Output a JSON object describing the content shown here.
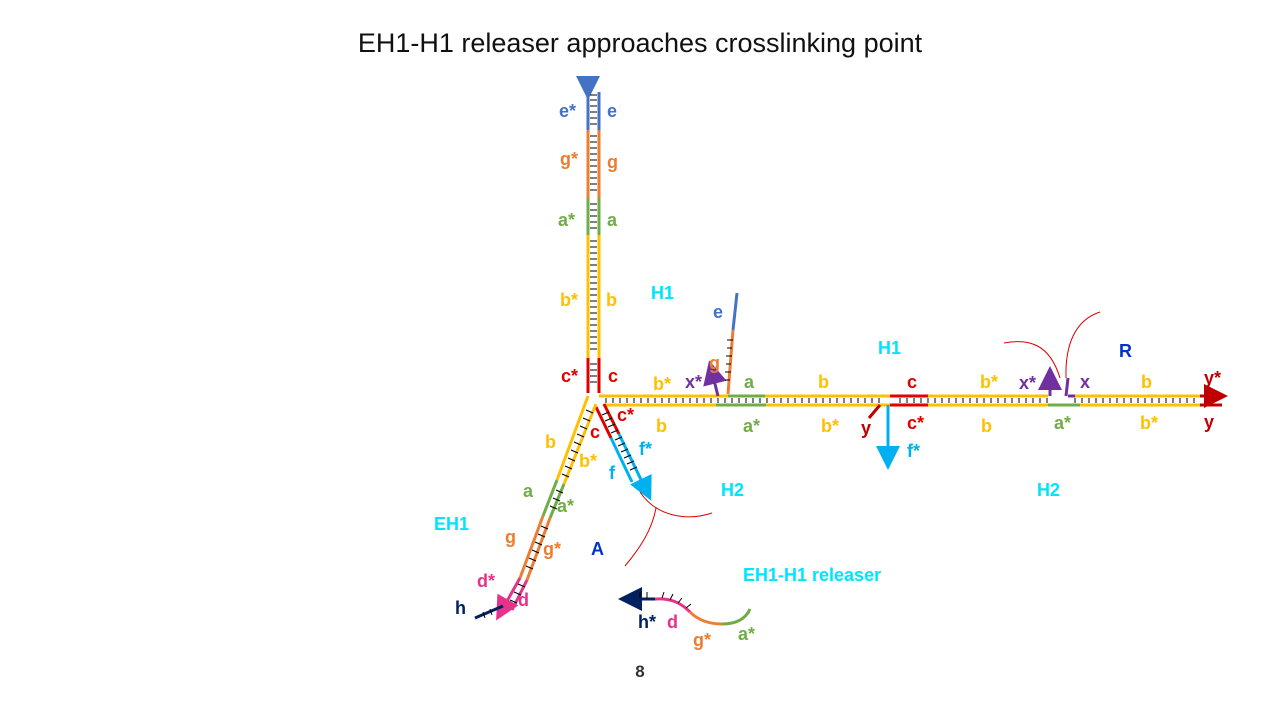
{
  "title": "EH1-H1 releaser approaches crosslinking point",
  "page_number": "8",
  "colors": {
    "blue": "#4472c4",
    "orange": "#ed7d31",
    "green": "#70ad47",
    "yellow": "#ffc000",
    "red": "#e00000",
    "dark_red": "#c00000",
    "purple": "#7030a0",
    "cyan": "#00b0f0",
    "magenta": "#e6338a",
    "navy": "#002060",
    "label_cyan": "#00e5ff",
    "label_blue": "#0033cc"
  },
  "labels": {
    "H1_left": "H1",
    "H1_right": "H1",
    "H2_left": "H2",
    "H2_right": "H2",
    "EH1": "EH1",
    "A": "A",
    "R": "R",
    "releaser": "EH1-H1 releaser"
  },
  "domains": {
    "top_e_star": "e*",
    "top_e": "e",
    "top_g_star": "g*",
    "top_g": "g",
    "top_a_star": "a*",
    "top_a": "a",
    "top_b_star": "b*",
    "top_b": "b",
    "top_c_star": "c*",
    "top_c": "c",
    "h1_b_star": "b*",
    "h1_x_star": "x*",
    "h1_g": "g",
    "h1_e": "e",
    "h1_a": "a",
    "h1_b": "b",
    "h1_a_star": "a*",
    "h1_b_star2": "b*",
    "h1b_b": "b",
    "mid_c": "c",
    "mid_c_star": "c*",
    "mid_y": "y",
    "mid_f_star": "f*",
    "r_b_star": "b*",
    "r_x_star": "x*",
    "r_x": "x",
    "r_b": "b",
    "r_y_star": "y*",
    "r_y": "y",
    "r_b_bottom": "b",
    "r_a_star": "a*",
    "r_b_star_bottom": "b*",
    "h2_c": "c",
    "h2_c_star": "c*",
    "h2_f": "f",
    "h2_f_star": "f*",
    "eh_b": "b",
    "eh_b_star": "b*",
    "eh_a": "a",
    "eh_a_star": "a*",
    "eh_g": "g",
    "eh_g_star": "g*",
    "eh_d_star": "d*",
    "eh_d": "d",
    "eh_h": "h",
    "rel_h_star": "h*",
    "rel_d": "d",
    "rel_g_star": "g*",
    "rel_a_star": "a*"
  }
}
